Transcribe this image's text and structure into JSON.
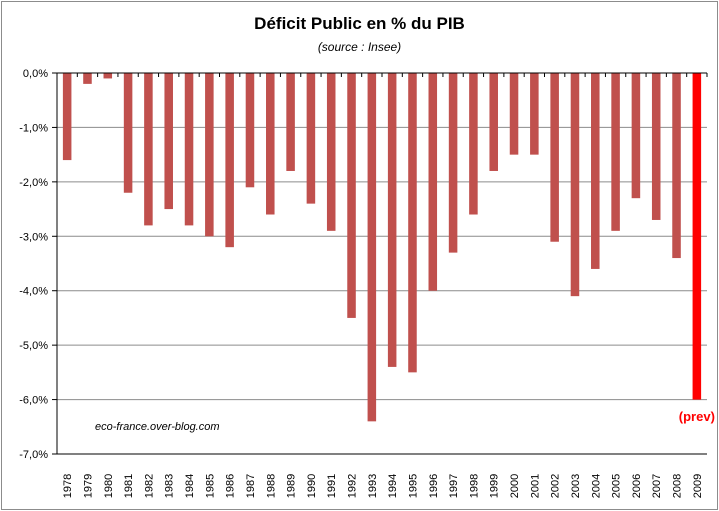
{
  "chart_data": {
    "type": "bar",
    "title": "Déficit Public en % du PIB",
    "subtitle": "(source : Insee)",
    "xlabel": "",
    "ylabel": "",
    "ylim": [
      -7,
      0
    ],
    "y_ticks": [
      "0,0%",
      "-1,0%",
      "-2,0%",
      "-3,0%",
      "-4,0%",
      "-5,0%",
      "-6,0%",
      "-7,0%"
    ],
    "grid": true,
    "categories": [
      "1978",
      "1979",
      "1980",
      "1981",
      "1982",
      "1983",
      "1984",
      "1985",
      "1986",
      "1987",
      "1988",
      "1989",
      "1990",
      "1991",
      "1992",
      "1993",
      "1994",
      "1995",
      "1996",
      "1997",
      "1998",
      "1999",
      "2000",
      "2001",
      "2002",
      "2003",
      "2004",
      "2005",
      "2006",
      "2007",
      "2008",
      "2009"
    ],
    "values": [
      -1.6,
      -0.2,
      -0.1,
      -2.2,
      -2.8,
      -2.5,
      -2.8,
      -3.0,
      -3.2,
      -2.1,
      -2.6,
      -1.8,
      -2.4,
      -2.9,
      -4.5,
      -6.4,
      -5.4,
      -5.5,
      -4.0,
      -3.3,
      -2.6,
      -1.8,
      -1.5,
      -1.5,
      -3.1,
      -4.1,
      -3.6,
      -2.9,
      -2.3,
      -2.7,
      -3.4,
      -6.0
    ],
    "bar_color": "#c0504d",
    "highlight_index": 31,
    "highlight_color": "#ff0000",
    "highlight_label": "(prev)",
    "watermark": "eco-france.over-blog.com"
  }
}
